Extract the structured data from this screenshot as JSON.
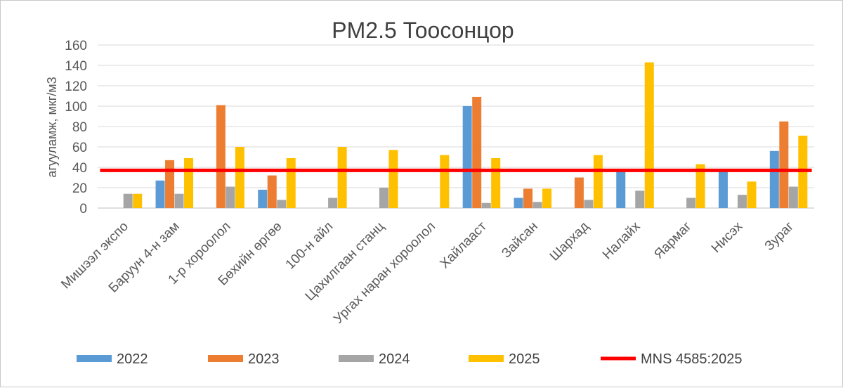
{
  "chart_data": {
    "type": "bar",
    "title": "PM2.5 Тоосонцор",
    "xlabel": "",
    "ylabel": "агууламж, мкг/м3",
    "ylim": [
      0,
      160
    ],
    "yticks": [
      0,
      20,
      40,
      60,
      80,
      100,
      120,
      140,
      160
    ],
    "grid": true,
    "legend_position": "bottom",
    "categories": [
      "Мишээл экспо",
      "Баруун 4-н зам",
      "1-р хороолол",
      "Бөхийн өргөө",
      "100-н айл",
      "Цахилгаан станц",
      "Ургах наран хороолол",
      "Хайлааст",
      "Зайсан",
      "Шархад",
      "Налайх",
      "Яармаг",
      "Нисэх",
      "Зураг"
    ],
    "series": [
      {
        "name": "2022",
        "color": "#5B9BD5",
        "values": [
          null,
          27,
          null,
          18,
          null,
          null,
          null,
          100,
          10,
          null,
          36,
          null,
          37,
          56
        ]
      },
      {
        "name": "2023",
        "color": "#ED7D31",
        "values": [
          null,
          47,
          101,
          32,
          null,
          null,
          null,
          109,
          19,
          30,
          null,
          null,
          null,
          85
        ]
      },
      {
        "name": "2024",
        "color": "#A5A5A5",
        "values": [
          14,
          14,
          21,
          8,
          10,
          20,
          null,
          5,
          6,
          8,
          17,
          10,
          13,
          21
        ]
      },
      {
        "name": "2025",
        "color": "#FFC000",
        "values": [
          14,
          49,
          60,
          49,
          60,
          57,
          52,
          49,
          19,
          52,
          143,
          43,
          26,
          71
        ]
      }
    ],
    "reference_line": {
      "name": "MNS 4585:2025",
      "value": 37,
      "color": "#FF0000"
    }
  }
}
